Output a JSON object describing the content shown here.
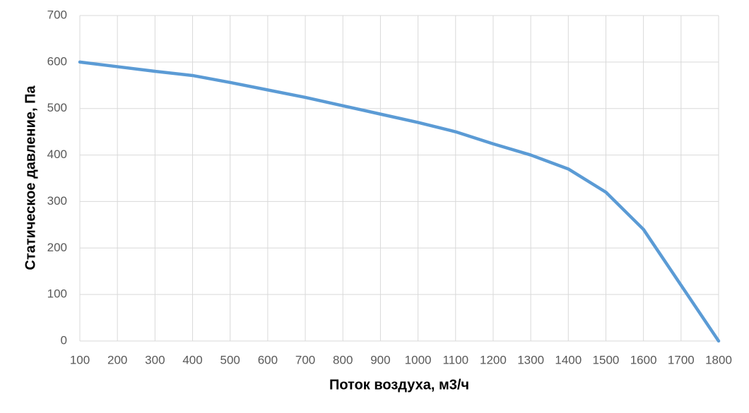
{
  "chart_data": {
    "type": "line",
    "x_label": "Поток воздуха, м3/ч",
    "y_label": "Статическое давление, Па",
    "x": [
      100,
      200,
      300,
      400,
      500,
      600,
      700,
      800,
      900,
      1000,
      1100,
      1200,
      1300,
      1400,
      1500,
      1600,
      1700,
      1800
    ],
    "series": [
      {
        "color": "#5b9bd5",
        "values": [
          600,
          590,
          580,
          571,
          556,
          540,
          524,
          506,
          488,
          470,
          450,
          424,
          400,
          370,
          320,
          240,
          120,
          0
        ]
      }
    ],
    "xlim": [
      100,
      1800
    ],
    "xticks": [
      100,
      200,
      300,
      400,
      500,
      600,
      700,
      800,
      900,
      1000,
      1100,
      1200,
      1300,
      1400,
      1500,
      1600,
      1700,
      1800
    ],
    "ylim": [
      0,
      700
    ],
    "yticks": [
      0,
      100,
      200,
      300,
      400,
      500,
      600,
      700
    ],
    "grid": true
  }
}
